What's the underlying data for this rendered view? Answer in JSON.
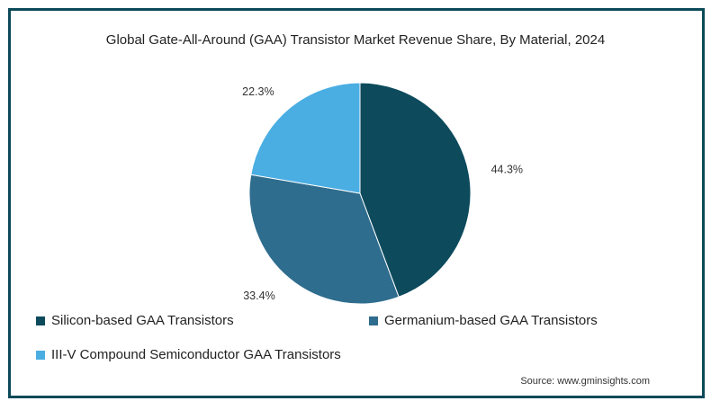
{
  "chart_data": {
    "type": "pie",
    "title": "Global Gate-All-Around (GAA) Transistor Market Revenue Share, By Material, 2024",
    "slices": [
      {
        "name": "Silicon-based GAA Transistors",
        "value": 44.3,
        "label": "44.3%",
        "color": "#0c4a5c"
      },
      {
        "name": "Germanium-based GAA Transistors",
        "value": 33.4,
        "label": "33.4%",
        "color": "#2f6d8e"
      },
      {
        "name": "III-V Compound Semiconductor GAA Transistors",
        "value": 22.3,
        "label": "22.3%",
        "color": "#4aaee3"
      }
    ],
    "start": "12 o'clock, clockwise",
    "legend_position": "bottom-left"
  },
  "source": "Source: www.gminsights.com"
}
